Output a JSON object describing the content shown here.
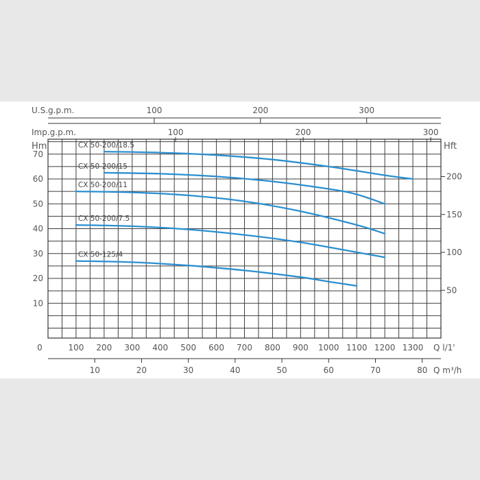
{
  "chart_data": {
    "type": "line",
    "title": "",
    "x_axis": {
      "label": "Q l/1'",
      "ticks": [
        0,
        100,
        200,
        300,
        400,
        500,
        600,
        700,
        800,
        900,
        1000,
        1100,
        1200,
        1300
      ],
      "range": [
        0,
        1400
      ]
    },
    "x_axis_bottom": {
      "label": "Q m³/h",
      "ticks": [
        10,
        20,
        30,
        40,
        50,
        60,
        70,
        80
      ],
      "factor_lpm_per_unit": 16.6667
    },
    "x_axis_top_usgpm": {
      "label": "U.S.g.p.m.",
      "ticks": [
        100,
        200,
        300
      ],
      "factor_lpm_per_unit": 3.785
    },
    "x_axis_top_impgpm": {
      "label": "Imp.g.p.m.",
      "ticks": [
        100,
        200,
        300
      ],
      "factor_lpm_per_unit": 4.546
    },
    "y_axis": {
      "label": "Hm",
      "ticks": [
        10,
        20,
        30,
        40,
        50,
        60,
        70
      ],
      "range": [
        -4,
        76
      ]
    },
    "y_axis_right": {
      "label": "Hft",
      "ticks": [
        50,
        100,
        150,
        200
      ],
      "factor_m_per_unit": 0.3048
    },
    "grid": true,
    "line_color": "#2a8fd0",
    "series": [
      {
        "name": "CX 50-200/18.5",
        "x": [
          200,
          400,
          600,
          800,
          1000,
          1200,
          1300
        ],
        "y": [
          71,
          70.6,
          69.6,
          67.8,
          65,
          61.5,
          60
        ]
      },
      {
        "name": "CX 50-200/15",
        "x": [
          200,
          400,
          600,
          800,
          1000,
          1100,
          1200
        ],
        "y": [
          62.5,
          62.1,
          61,
          59,
          56,
          53.8,
          50
        ]
      },
      {
        "name": "CX 50-200/11",
        "x": [
          100,
          300,
          500,
          700,
          900,
          1100,
          1200
        ],
        "y": [
          55,
          54.6,
          53.4,
          51,
          47,
          41.5,
          38
        ]
      },
      {
        "name": "CX 50-200/7.5",
        "x": [
          100,
          300,
          500,
          700,
          900,
          1100,
          1200
        ],
        "y": [
          41.5,
          41,
          39.7,
          37.5,
          34.5,
          30.5,
          28.5
        ]
      },
      {
        "name": "CX 50-125/4",
        "x": [
          100,
          300,
          500,
          700,
          900,
          1000,
          1100
        ],
        "y": [
          27,
          26.5,
          25.2,
          23.2,
          20.5,
          18.7,
          17
        ]
      }
    ]
  }
}
